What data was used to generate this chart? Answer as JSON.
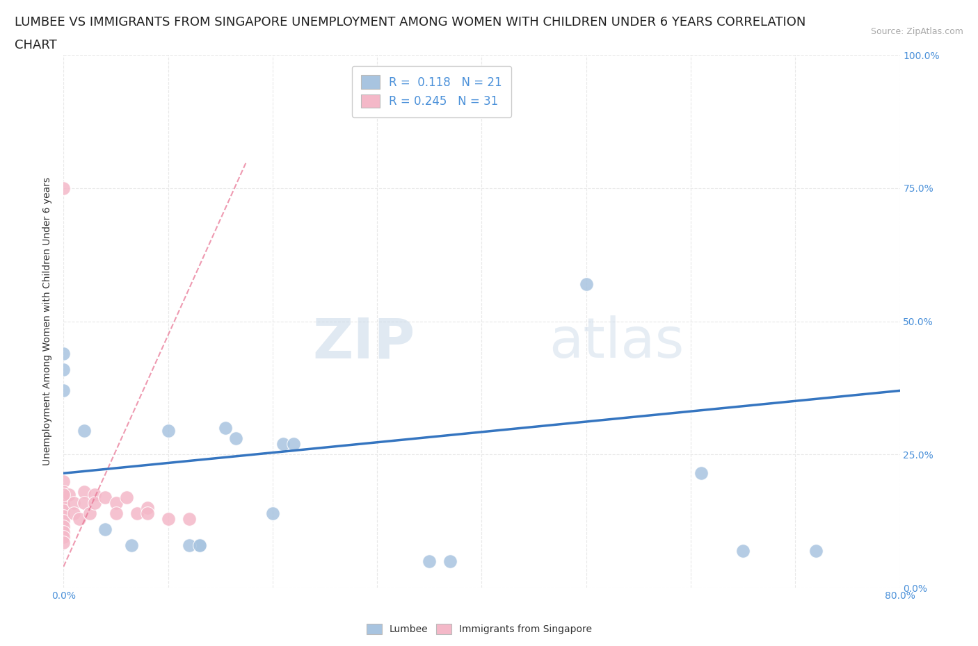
{
  "title_line1": "LUMBEE VS IMMIGRANTS FROM SINGAPORE UNEMPLOYMENT AMONG WOMEN WITH CHILDREN UNDER 6 YEARS CORRELATION",
  "title_line2": "CHART",
  "source_text": "Source: ZipAtlas.com",
  "ylabel": "Unemployment Among Women with Children Under 6 years",
  "xlim": [
    0.0,
    0.8
  ],
  "ylim": [
    0.0,
    1.0
  ],
  "lumbee_color": "#a8c4e0",
  "singapore_color": "#f4b8c8",
  "lumbee_R": 0.118,
  "lumbee_N": 21,
  "singapore_R": 0.245,
  "singapore_N": 31,
  "lumbee_x": [
    0.0,
    0.0,
    0.0,
    0.02,
    0.04,
    0.065,
    0.1,
    0.13,
    0.155,
    0.165,
    0.21,
    0.22,
    0.35,
    0.5,
    0.61,
    0.65,
    0.72,
    0.12,
    0.13,
    0.2,
    0.37
  ],
  "lumbee_y": [
    0.44,
    0.41,
    0.37,
    0.295,
    0.11,
    0.08,
    0.295,
    0.08,
    0.3,
    0.28,
    0.27,
    0.27,
    0.05,
    0.57,
    0.215,
    0.07,
    0.07,
    0.08,
    0.08,
    0.14,
    0.05
  ],
  "singapore_x": [
    0.0,
    0.0,
    0.0,
    0.0,
    0.0,
    0.0,
    0.0,
    0.0,
    0.0,
    0.0,
    0.0,
    0.0,
    0.005,
    0.01,
    0.01,
    0.015,
    0.02,
    0.02,
    0.025,
    0.03,
    0.03,
    0.04,
    0.05,
    0.05,
    0.06,
    0.07,
    0.08,
    0.08,
    0.1,
    0.12,
    0.0
  ],
  "singapore_y": [
    0.75,
    0.2,
    0.18,
    0.165,
    0.155,
    0.145,
    0.135,
    0.125,
    0.115,
    0.105,
    0.095,
    0.085,
    0.175,
    0.16,
    0.14,
    0.13,
    0.18,
    0.16,
    0.14,
    0.175,
    0.16,
    0.17,
    0.16,
    0.14,
    0.17,
    0.14,
    0.15,
    0.14,
    0.13,
    0.13,
    0.175
  ],
  "lumbee_trend_x": [
    0.0,
    0.8
  ],
  "lumbee_trend_y": [
    0.215,
    0.37
  ],
  "lumbee_trend_color": "#3575c0",
  "singapore_trend_x": [
    0.0,
    0.175
  ],
  "singapore_trend_y": [
    0.04,
    0.8
  ],
  "singapore_trend_color": "#e87090",
  "watermark_zip": "ZIP",
  "watermark_atlas": "atlas",
  "background_color": "#ffffff",
  "grid_color": "#e8e8e8",
  "right_tick_color": "#4a90d9",
  "title_fontsize": 13,
  "axis_label_fontsize": 10,
  "tick_fontsize": 10,
  "legend_fontsize": 12
}
